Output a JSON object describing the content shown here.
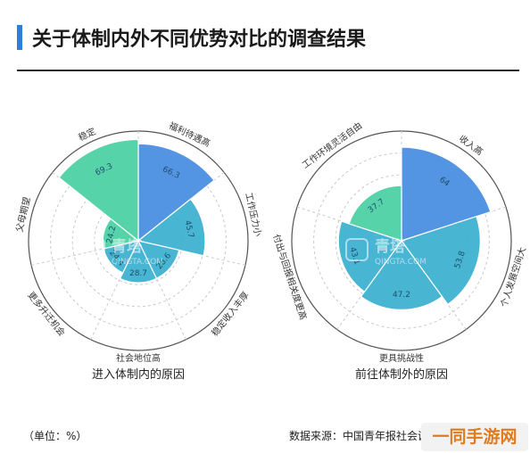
{
  "header": {
    "title": "关于体制内外不同优势对比的调查结果"
  },
  "footer": {
    "unit": "（单位：%）",
    "source": "数据来源：中国青年报社会调查中心"
  },
  "badge": {
    "text": "一同手游网"
  },
  "watermark": {
    "cn": "青塔",
    "en": "QINGTA.COM"
  },
  "colors": {
    "blue": "#4a90e2",
    "green": "#4fd1a5",
    "teal": "#3fb2d0",
    "grid": "#c9c9c9",
    "accent": "#2e7fd9"
  },
  "chart_data": [
    {
      "type": "polar-area",
      "caption": "进入体制内的原因",
      "categories": [
        "福利待遇高",
        "工作压力小",
        "稳定收入丰厚",
        "社会地位高",
        "更多升迁机会",
        "父母期望",
        "稳定"
      ],
      "values": [
        66.3,
        45.7,
        28.6,
        28.7,
        24.4,
        24.2,
        69.3
      ]
    },
    {
      "type": "polar-area",
      "caption": "前往体制外的原因",
      "categories": [
        "收入高",
        "个人发展空间大",
        "更具挑战性",
        "付出与回报相关度更高",
        "工作环境灵活自由"
      ],
      "values": [
        64,
        53.8,
        47.2,
        43.1,
        37.7
      ]
    }
  ]
}
